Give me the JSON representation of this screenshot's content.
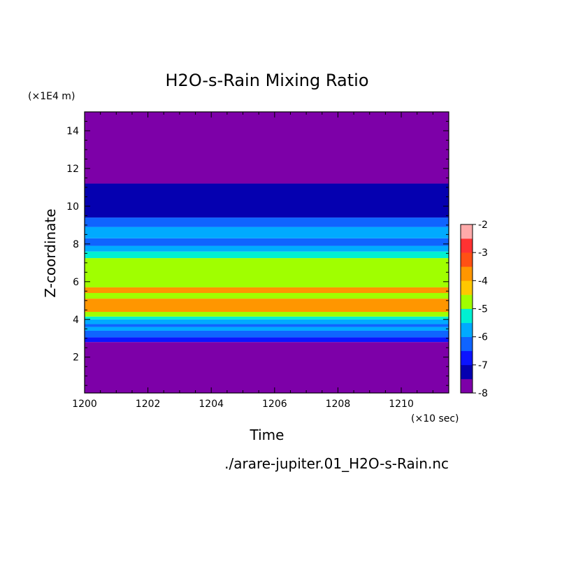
{
  "chart_data": {
    "type": "heatmap",
    "title": "H2O-s-Rain Mixing Ratio",
    "xlabel": "Time",
    "x_unit": "(×10 sec)",
    "ylabel": "Z-coordinate",
    "y_unit": "(×1E4 m)",
    "xlim": [
      1200,
      1211.5
    ],
    "ylim": [
      0.1,
      15
    ],
    "x_ticks": [
      1200,
      1202,
      1204,
      1206,
      1208,
      1210
    ],
    "y_ticks": [
      2,
      4,
      6,
      8,
      10,
      12,
      14
    ],
    "footer": "./arare-jupiter.01_H2O-s-Rain.nc",
    "colorbar": {
      "levels": [
        -8,
        -7.5,
        -7,
        -6.5,
        -6,
        -5.5,
        -5,
        -4.5,
        -4,
        -3.5,
        -3,
        -2.5,
        -2
      ],
      "tick_labels": [
        "-8",
        "-7",
        "-6",
        "-5",
        "-4",
        "-3",
        "-2"
      ],
      "tick_values": [
        -8,
        -7,
        -6,
        -5,
        -4,
        -3,
        -2
      ],
      "colors": [
        "#7d00a8",
        "#0500b0",
        "#0c14ff",
        "#0f64ff",
        "#00aaff",
        "#00f0d2",
        "#a0ff00",
        "#ffc800",
        "#ff9600",
        "#ff5014",
        "#ff3232",
        "#ffaaaa"
      ]
    },
    "bands": [
      {
        "z": [
          0.1,
          2.8
        ],
        "value": -8
      },
      {
        "z": [
          2.8,
          3.05
        ],
        "value": -7
      },
      {
        "z": [
          3.05,
          3.4
        ],
        "value": -6.5
      },
      {
        "z": [
          3.4,
          3.6
        ],
        "value": -6
      },
      {
        "z": [
          3.6,
          3.75
        ],
        "value": -6.5
      },
      {
        "z": [
          3.75,
          4.0
        ],
        "value": -6
      },
      {
        "z": [
          4.0,
          4.15
        ],
        "value": -5.5
      },
      {
        "z": [
          4.15,
          4.4
        ],
        "value": -5
      },
      {
        "z": [
          4.4,
          5.1
        ],
        "value": -4
      },
      {
        "z": [
          5.1,
          5.4
        ],
        "value": -5
      },
      {
        "z": [
          5.4,
          5.7
        ],
        "value": -4
      },
      {
        "z": [
          5.7,
          7.25
        ],
        "value": -5
      },
      {
        "z": [
          7.25,
          7.6
        ],
        "value": -5.5
      },
      {
        "z": [
          7.6,
          7.9
        ],
        "value": -6
      },
      {
        "z": [
          7.9,
          8.3
        ],
        "value": -6.5
      },
      {
        "z": [
          8.3,
          8.9
        ],
        "value": -6
      },
      {
        "z": [
          8.9,
          9.4
        ],
        "value": -6.5
      },
      {
        "z": [
          9.4,
          11.2
        ],
        "value": -7.5
      },
      {
        "z": [
          11.2,
          15
        ],
        "value": -8
      }
    ]
  }
}
